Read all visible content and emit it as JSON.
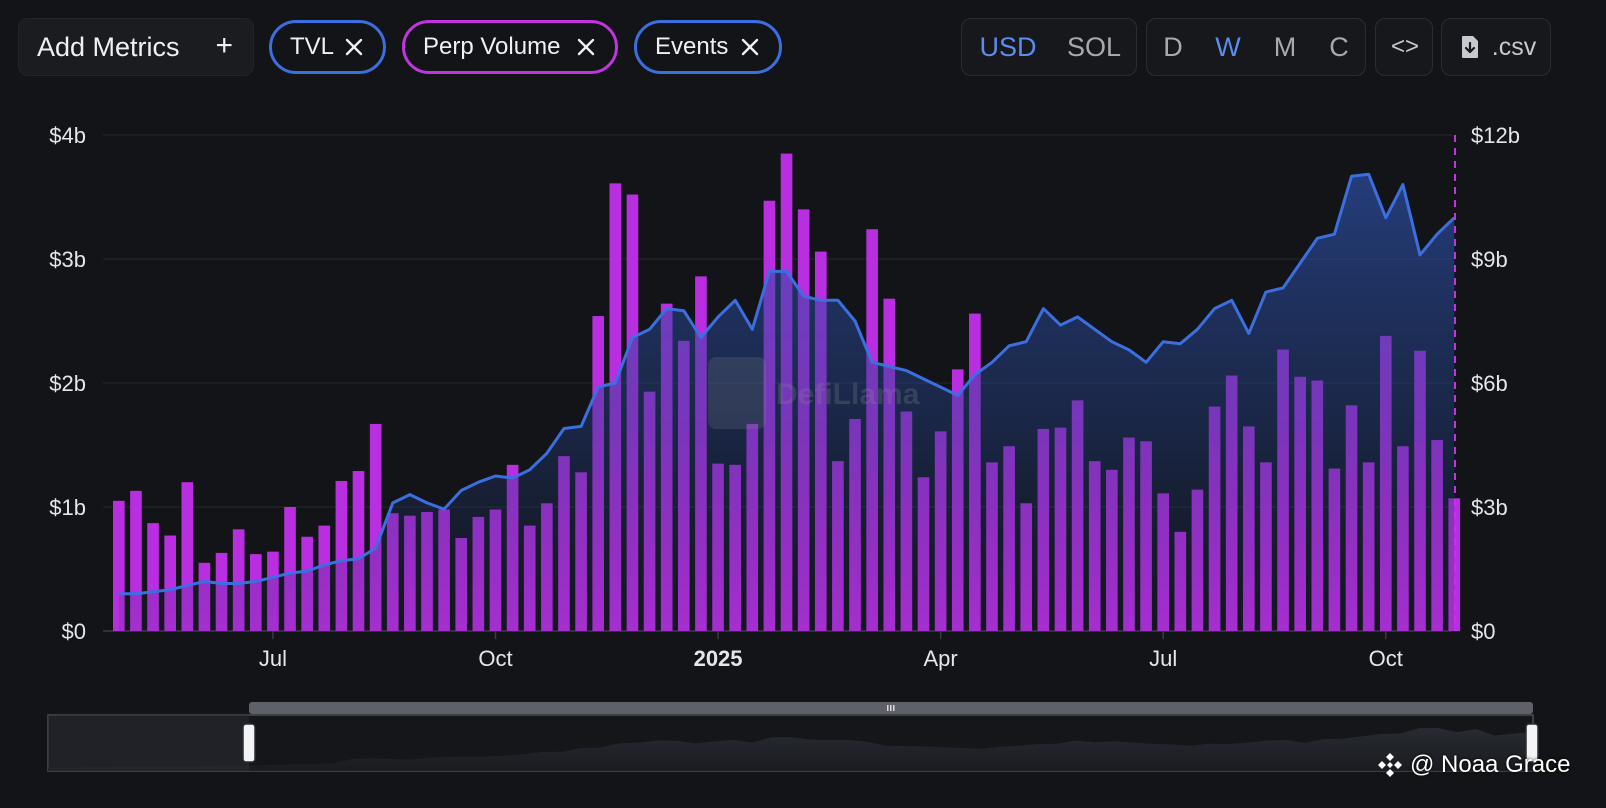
{
  "toolbar": {
    "add_metrics_label": "Add Metrics",
    "add_icon": "plus-icon",
    "chips": [
      {
        "label": "TVL",
        "color": "#3b6fe0",
        "icon": "close-icon"
      },
      {
        "label": "Perp Volume",
        "color": "#c234e0",
        "icon": "close-icon"
      },
      {
        "label": "Events",
        "color": "#3b6fe0",
        "icon": "close-icon"
      }
    ],
    "currency": {
      "options": [
        "USD",
        "SOL"
      ],
      "selected": "USD"
    },
    "interval": {
      "options": [
        "D",
        "W",
        "M",
        "C"
      ],
      "selected": "W"
    },
    "embed_label": "<>",
    "embed_icon": "code-icon",
    "csv_label": ".csv",
    "csv_icon": "download-icon"
  },
  "watermark": "DefiLlama",
  "credit": "@ Noaa Grace",
  "colors": {
    "background": "#131417",
    "tvl_line": "#3b6fe0",
    "perp_bar": "#b82ee0",
    "accent": "#5b8def",
    "events_marker": "#c234e0"
  },
  "chart_data": {
    "type": "bar+line",
    "title": "",
    "x_ticks": [
      "Jul",
      "Oct",
      "2025",
      "Apr",
      "Jul",
      "Oct"
    ],
    "x_tick_weeks": [
      9,
      22,
      35,
      48,
      61,
      74
    ],
    "left_axis": {
      "ticks": [
        "$0",
        "$1b",
        "$2b",
        "$3b",
        "$4b"
      ],
      "range": [
        0,
        4
      ]
    },
    "right_axis": {
      "ticks": [
        "$0",
        "$3b",
        "$6b",
        "$9b",
        "$12b"
      ],
      "range": [
        0,
        12
      ]
    },
    "series": [
      {
        "name": "Perp Volume",
        "axis": "left",
        "unit": "$b",
        "kind": "bar",
        "values": [
          1.05,
          1.13,
          0.87,
          0.77,
          1.2,
          0.55,
          0.63,
          0.82,
          0.62,
          0.64,
          1.0,
          0.76,
          0.85,
          1.21,
          1.29,
          1.67,
          0.95,
          0.93,
          0.96,
          0.98,
          0.75,
          0.92,
          0.98,
          1.34,
          0.85,
          1.03,
          1.41,
          1.28,
          2.54,
          3.61,
          3.52,
          1.93,
          2.64,
          2.34,
          2.86,
          1.35,
          1.34,
          1.67,
          3.47,
          3.85,
          3.4,
          3.06,
          1.37,
          1.71,
          3.24,
          2.68,
          1.77,
          1.24,
          1.61,
          2.11,
          2.56,
          1.36,
          1.49,
          1.03,
          1.63,
          1.64,
          1.86,
          1.37,
          1.3,
          1.56,
          1.53,
          1.11,
          0.8,
          1.14,
          1.81,
          2.06,
          1.65,
          1.36,
          2.27,
          2.05,
          2.02,
          1.31,
          1.82,
          1.36,
          2.38,
          1.49,
          2.26,
          1.54,
          1.07
        ]
      },
      {
        "name": "TVL",
        "axis": "right",
        "unit": "$b",
        "kind": "line-area",
        "values": [
          0.9,
          0.9,
          0.95,
          1.0,
          1.1,
          1.2,
          1.15,
          1.15,
          1.2,
          1.3,
          1.4,
          1.45,
          1.6,
          1.7,
          1.75,
          2.0,
          3.1,
          3.3,
          3.1,
          2.95,
          3.4,
          3.6,
          3.75,
          3.7,
          3.9,
          4.3,
          4.9,
          4.95,
          5.9,
          6.0,
          7.1,
          7.3,
          7.8,
          7.75,
          7.1,
          7.6,
          8.0,
          7.3,
          8.7,
          8.7,
          8.1,
          8.0,
          8.0,
          7.5,
          6.5,
          6.4,
          6.3,
          6.1,
          5.9,
          5.7,
          6.2,
          6.5,
          6.9,
          7.0,
          7.8,
          7.4,
          7.6,
          7.3,
          7.0,
          6.8,
          6.5,
          7.0,
          6.95,
          7.3,
          7.8,
          8.0,
          7.2,
          8.2,
          8.3,
          8.9,
          9.5,
          9.6,
          11.0,
          11.05,
          10.0,
          10.8,
          9.1,
          9.6,
          10.0
        ]
      }
    ],
    "events": [
      {
        "week": 79,
        "label": ""
      }
    ]
  }
}
